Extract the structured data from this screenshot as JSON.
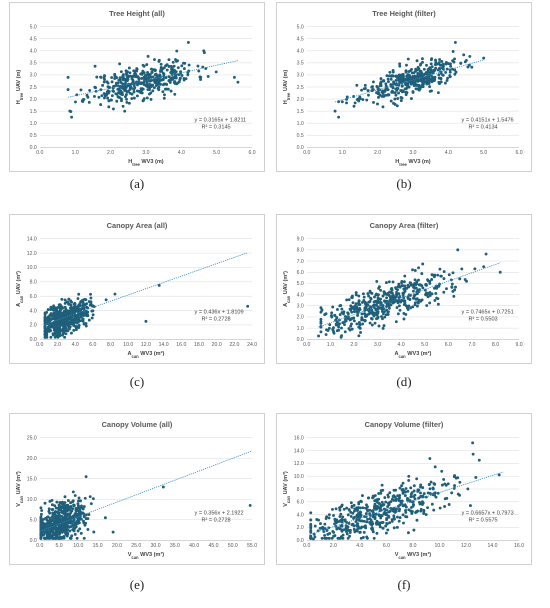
{
  "panel_labels": [
    "(a)",
    "(b)",
    "(c)",
    "(d)",
    "(e)",
    "(f)"
  ],
  "colors": {
    "marker": "#1f5f7a",
    "trend": "#2e86c1",
    "grid": "#d9d9d9",
    "text": "#595959"
  },
  "chart_data": [
    {
      "type": "scatter",
      "title": "Tree Height (all)",
      "xlabel": "Htree WV3 (m)",
      "ylabel": "Htree UAV (m)",
      "xlim": [
        0,
        6
      ],
      "ylim": [
        0,
        5
      ],
      "x_ticks": [
        "0.0",
        "1.0",
        "2.0",
        "3.0",
        "4.0",
        "5.0",
        "6.0"
      ],
      "y_ticks": [
        "0.0",
        "0.5",
        "1.0",
        "1.5",
        "2.0",
        "2.5",
        "3.0",
        "3.5",
        "4.0",
        "4.5",
        "5.0"
      ],
      "trendline": {
        "slope": 0.3165,
        "intercept": 1.8211,
        "x_range": [
          0.8,
          5.6
        ]
      },
      "equation": "y = 0.3165x + 1.8211",
      "r2": "R² = 0.3145",
      "cloud": {
        "n": 420,
        "x_mean": 2.9,
        "x_sd": 0.75,
        "x_min": 0.8,
        "x_max": 5.6,
        "resid_sd": 0.36,
        "seed": 11
      },
      "outliers": [
        [
          0.8,
          2.9
        ],
        [
          0.85,
          1.5
        ],
        [
          0.9,
          1.25
        ],
        [
          5.5,
          2.9
        ],
        [
          5.6,
          2.7
        ],
        [
          4.2,
          4.35
        ]
      ]
    },
    {
      "type": "scatter",
      "title": "Tree Height (filter)",
      "xlabel": "Htree WV3 (m)",
      "ylabel": "Htree UAV (m)",
      "xlim": [
        0,
        6
      ],
      "ylim": [
        0,
        5
      ],
      "x_ticks": [
        "0.0",
        "1.0",
        "2.0",
        "3.0",
        "4.0",
        "5.0",
        "6.0"
      ],
      "y_ticks": [
        "0.0",
        "0.5",
        "1.0",
        "1.5",
        "2.0",
        "2.5",
        "3.0",
        "3.5",
        "4.0",
        "4.5",
        "5.0"
      ],
      "trendline": {
        "slope": 0.4151,
        "intercept": 1.5476,
        "x_range": [
          0.8,
          5.0
        ]
      },
      "equation": "y = 0.4151x + 1.5476",
      "r2": "R² = 0.4134",
      "cloud": {
        "n": 400,
        "x_mean": 2.9,
        "x_sd": 0.7,
        "x_min": 0.9,
        "x_max": 4.9,
        "resid_sd": 0.3,
        "seed": 23
      },
      "outliers": [
        [
          0.8,
          1.5
        ],
        [
          0.9,
          1.25
        ],
        [
          5.0,
          3.7
        ],
        [
          4.2,
          4.35
        ]
      ]
    },
    {
      "type": "scatter",
      "title": "Canopy Area (all)",
      "xlabel": "Acan WV3 (m²)",
      "ylabel": "Acan UAV (m²)",
      "xlim": [
        0,
        24
      ],
      "ylim": [
        0,
        14
      ],
      "x_ticks": [
        "0.0",
        "2.0",
        "4.0",
        "6.0",
        "8.0",
        "10.0",
        "12.0",
        "14.0",
        "16.0",
        "18.0",
        "20.0",
        "22.0",
        "24.0"
      ],
      "y_ticks": [
        "0.0",
        "2.0",
        "4.0",
        "6.0",
        "8.0",
        "10.0",
        "12.0",
        "14.0"
      ],
      "trendline": {
        "slope": 0.436,
        "intercept": 1.8109,
        "x_range": [
          0.5,
          23.5
        ]
      },
      "equation": "y = 0.436x + 1.8109",
      "r2": "R² = 0.2728",
      "cloud": {
        "n": 520,
        "x_mean": 2.8,
        "x_sd": 1.4,
        "x_min": 0.6,
        "x_max": 7.0,
        "resid_sd": 1.1,
        "seed": 37
      },
      "outliers": [
        [
          13.5,
          7.5
        ],
        [
          12.0,
          2.5
        ],
        [
          23.5,
          4.6
        ],
        [
          8.5,
          6.3
        ],
        [
          7.5,
          5.5
        ]
      ]
    },
    {
      "type": "scatter",
      "title": "Canopy Area (filter)",
      "xlabel": "Acan WV3 (m²)",
      "ylabel": "Acan UAV (m²)",
      "xlim": [
        0,
        9
      ],
      "ylim": [
        0,
        9
      ],
      "x_ticks": [
        "0.0",
        "1.0",
        "2.0",
        "3.0",
        "4.0",
        "5.0",
        "6.0",
        "7.0",
        "8.0",
        "9.0"
      ],
      "y_ticks": [
        "0.0",
        "1.0",
        "2.0",
        "3.0",
        "4.0",
        "5.0",
        "6.0",
        "7.0",
        "8.0",
        "9.0"
      ],
      "trendline": {
        "slope": 0.7465,
        "intercept": 0.7251,
        "x_range": [
          0.5,
          8.2
        ]
      },
      "equation": "y = 0.7465x + 0.7251",
      "r2": "R² = 0.5503",
      "cloud": {
        "n": 480,
        "x_mean": 3.4,
        "x_sd": 1.4,
        "x_min": 0.6,
        "x_max": 7.6,
        "resid_sd": 0.85,
        "seed": 51
      },
      "outliers": [
        [
          0.5,
          0.3
        ],
        [
          8.2,
          6.0
        ],
        [
          7.5,
          6.5
        ],
        [
          6.4,
          8.0
        ]
      ]
    },
    {
      "type": "scatter",
      "title": "Canopy Volume (all)",
      "xlabel": "Vcan WV3 (m³)",
      "ylabel": "Vcan UAV (m³)",
      "xlim": [
        0,
        55
      ],
      "ylim": [
        0,
        25
      ],
      "x_ticks": [
        "0.0",
        "5.0",
        "10.0",
        "15.0",
        "20.0",
        "25.0",
        "30.0",
        "35.0",
        "40.0",
        "45.0",
        "50.0",
        "55.0"
      ],
      "y_ticks": [
        "0.0",
        "5.0",
        "10.0",
        "15.0",
        "20.0",
        "25.0"
      ],
      "trendline": {
        "slope": 0.356,
        "intercept": 2.1922,
        "x_range": [
          0,
          55
        ]
      },
      "equation": "y = 0.356x + 2.1922",
      "r2": "R² = 0.2728",
      "cloud": {
        "n": 520,
        "x_mean": 5.0,
        "x_sd": 3.2,
        "x_min": 0.3,
        "x_max": 14.0,
        "resid_sd": 2.4,
        "seed": 67
      },
      "outliers": [
        [
          32.0,
          13.0
        ],
        [
          54.5,
          8.5
        ],
        [
          19.0,
          2.0
        ],
        [
          17.0,
          5.5
        ],
        [
          12.0,
          15.5
        ]
      ]
    },
    {
      "type": "scatter",
      "title": "Canopy Volume (filter)",
      "xlabel": "Vcan WV3 (m³)",
      "ylabel": "Vcan UAV (m³)",
      "xlim": [
        0,
        16
      ],
      "ylim": [
        0,
        16
      ],
      "x_ticks": [
        "0.0",
        "2.0",
        "4.0",
        "6.0",
        "8.0",
        "10.0",
        "12.0",
        "14.0",
        "16.0"
      ],
      "y_ticks": [
        "0.0",
        "2.0",
        "4.0",
        "6.0",
        "8.0",
        "10.0",
        "12.0",
        "14.0",
        "16.0"
      ],
      "trendline": {
        "slope": 0.6657,
        "intercept": 0.7973,
        "x_range": [
          0.2,
          14.8
        ]
      },
      "equation": "y = 0.6657x + 0.7973",
      "r2": "R² = 0.5575",
      "cloud": {
        "n": 500,
        "x_mean": 5.2,
        "x_sd": 3.0,
        "x_min": 0.3,
        "x_max": 14.5,
        "resid_sd": 1.7,
        "seed": 83
      },
      "outliers": [
        [
          12.5,
          15.2
        ],
        [
          14.5,
          10.2
        ],
        [
          13.0,
          12.5
        ],
        [
          0.5,
          0.2
        ]
      ]
    }
  ]
}
